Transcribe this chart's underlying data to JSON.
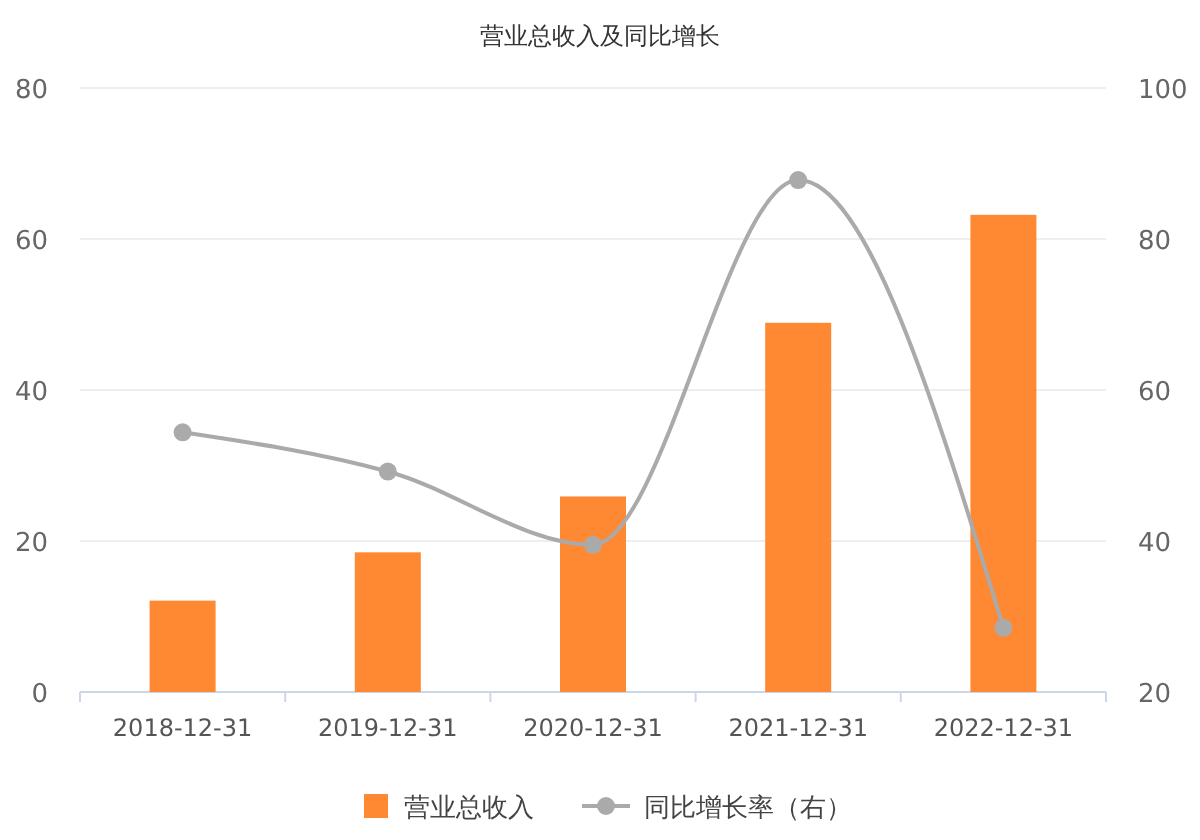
{
  "chart_data": {
    "type": "bar",
    "title": "营业总收入及同比增长",
    "categories": [
      "2018-12-31",
      "2019-12-31",
      "2020-12-31",
      "2021-12-31",
      "2022-12-31"
    ],
    "series": [
      {
        "name": "营业总收入",
        "color": "#ff8833",
        "values": [
          12.1,
          18.5,
          25.9,
          48.9,
          63.2
        ]
      },
      {
        "name": "同比增长率（右）",
        "type": "line",
        "axis": "y2",
        "color": "#aaaaaa",
        "values": [
          54.4,
          49.2,
          39.5,
          87.8,
          28.5
        ]
      }
    ],
    "ylim": [
      0,
      80
    ],
    "yticks": [
      0,
      20,
      40,
      60,
      80
    ],
    "y2lim": [
      20,
      100
    ],
    "y2ticks": [
      20,
      40,
      60,
      80,
      100
    ],
    "grid": "y",
    "legend": "bottom",
    "marker": "circle"
  }
}
